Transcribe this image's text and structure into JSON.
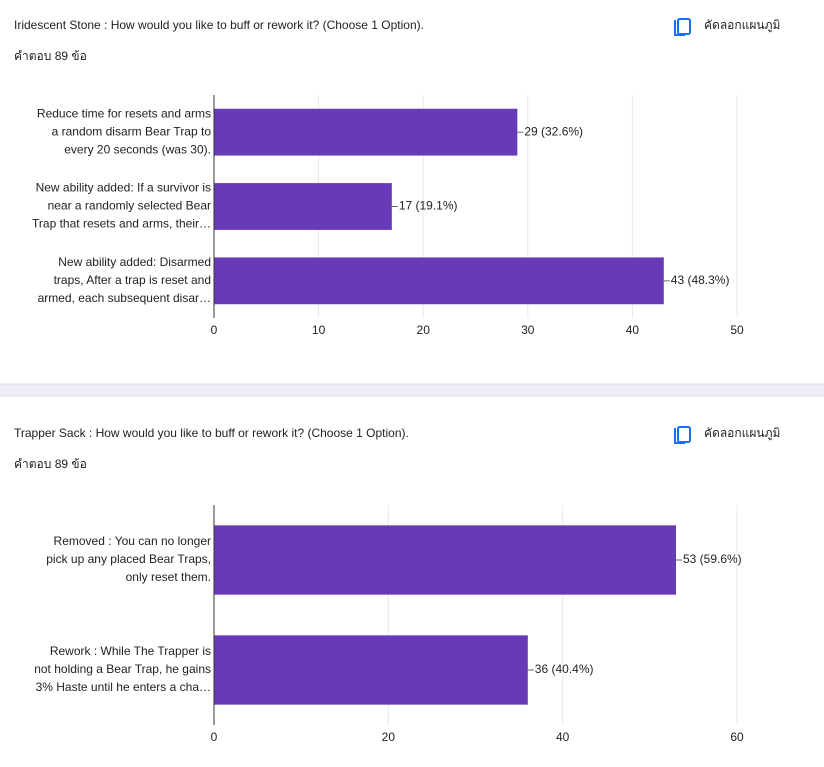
{
  "chart_data": [
    {
      "type": "bar",
      "orientation": "horizontal",
      "title": "Iridescent Stone : How would you like to buff or rework it? (Choose 1 Option).",
      "subtitle": "คำตอบ 89 ข้อ",
      "copy_button": "คัดลอกแผนภูมิ",
      "categories": [
        [
          "Reduce time for resets and arms",
          "a random disarm Bear Trap to",
          "every 20 seconds (was 30)."
        ],
        [
          "New ability added: If a survivor is",
          "near a randomly selected Bear",
          "Trap that resets and arms, their…"
        ],
        [
          "New ability added: Disarmed",
          "traps, After a trap is reset and",
          "armed, each subsequent disar…"
        ]
      ],
      "values": [
        29,
        17,
        43
      ],
      "value_labels": [
        "29 (32.6%)",
        "17 (19.1%)",
        "43 (48.3%)"
      ],
      "color": "#673ab7",
      "xlim": [
        0,
        50
      ],
      "xticks": [
        0,
        10,
        20,
        30,
        40,
        50
      ],
      "grid": true
    },
    {
      "type": "bar",
      "orientation": "horizontal",
      "title": "Trapper Sack : How would you like to buff or rework it? (Choose 1 Option).",
      "subtitle": "คำตอบ 89 ข้อ",
      "copy_button": "คัดลอกแผนภูมิ",
      "categories": [
        [
          "Removed : You can no longer",
          "pick up any placed Bear Traps,",
          "only reset them."
        ],
        [
          "Rework : While The Trapper is",
          "not holding a Bear Trap, he gains",
          "3% Haste until he enters a cha…"
        ]
      ],
      "values": [
        53,
        36
      ],
      "value_labels": [
        "53 (59.6%)",
        "36 (40.4%)"
      ],
      "color": "#673ab7",
      "xlim": [
        0,
        60
      ],
      "xticks": [
        0,
        20,
        40,
        60
      ],
      "grid": true
    }
  ]
}
